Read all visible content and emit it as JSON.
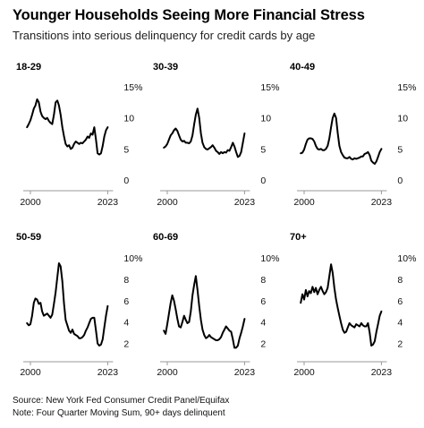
{
  "header": {
    "title": "Younger Households Seeing More Financial Stress",
    "subtitle": "Transitions into serious delinquency for credit cards by age"
  },
  "footer": {
    "source": "Source: New York Fed Consumer Credit Panel/Equifax",
    "note": "Note: Four Quarter Moving Sum, 90+ days delinquent"
  },
  "chart_data": [
    {
      "type": "line",
      "title": "18-29",
      "xlabel": "",
      "ylabel": "",
      "x_ticks": [
        "2000",
        "2023"
      ],
      "xlim": [
        2000,
        2023
      ],
      "y_ticks": [
        0,
        5,
        10,
        15
      ],
      "y_tick_labels": [
        "0",
        "5",
        "10",
        "15%"
      ],
      "ylim": [
        0,
        15
      ],
      "series": [
        {
          "x": [
            1999.0,
            1999.5,
            2000.0,
            2000.5,
            2001.0,
            2001.5,
            2002.0,
            2002.5,
            2003.0,
            2003.5,
            2004.0,
            2004.5,
            2005.0,
            2005.5,
            2006.0,
            2006.5,
            2007.0,
            2007.5,
            2008.0,
            2008.5,
            2009.0,
            2009.5,
            2010.0,
            2010.5,
            2011.0,
            2011.5,
            2012.0,
            2012.5,
            2013.0,
            2013.5,
            2014.0,
            2014.5,
            2015.0,
            2015.5,
            2016.0,
            2016.5,
            2017.0,
            2017.5,
            2018.0,
            2018.5,
            2019.0,
            2019.5,
            2020.0,
            2020.5,
            2021.0,
            2021.5,
            2022.0,
            2022.5,
            2023.0
          ],
          "y": [
            8.5,
            9.0,
            9.6,
            10.5,
            11.5,
            12.0,
            13.0,
            12.5,
            11.0,
            10.3,
            10.0,
            9.8,
            10.0,
            9.5,
            9.2,
            9.0,
            10.5,
            12.5,
            12.8,
            12.0,
            10.5,
            8.5,
            7.0,
            5.8,
            5.4,
            5.6,
            5.0,
            5.2,
            5.8,
            6.2,
            6.0,
            5.8,
            6.0,
            5.9,
            6.2,
            6.5,
            7.0,
            6.8,
            7.5,
            7.3,
            8.5,
            6.5,
            4.3,
            4.1,
            4.3,
            5.5,
            7.0,
            8.0,
            8.5
          ]
        }
      ]
    },
    {
      "type": "line",
      "title": "30-39",
      "xlabel": "",
      "ylabel": "",
      "x_ticks": [
        "2000",
        "2023"
      ],
      "xlim": [
        2000,
        2023
      ],
      "y_ticks": [
        0,
        5,
        10,
        15
      ],
      "y_tick_labels": [
        "0",
        "5",
        "10",
        "15%"
      ],
      "ylim": [
        0,
        15
      ],
      "series": [
        {
          "x": [
            1999.0,
            1999.5,
            2000.0,
            2000.5,
            2001.0,
            2001.5,
            2002.0,
            2002.5,
            2003.0,
            2003.5,
            2004.0,
            2004.5,
            2005.0,
            2005.5,
            2006.0,
            2006.5,
            2007.0,
            2007.5,
            2008.0,
            2008.5,
            2009.0,
            2009.5,
            2010.0,
            2010.5,
            2011.0,
            2011.5,
            2012.0,
            2012.5,
            2013.0,
            2013.5,
            2014.0,
            2014.5,
            2015.0,
            2015.5,
            2016.0,
            2016.5,
            2017.0,
            2017.5,
            2018.0,
            2018.5,
            2019.0,
            2019.5,
            2020.0,
            2020.5,
            2021.0,
            2021.5,
            2022.0,
            2022.5,
            2023.0
          ],
          "y": [
            5.2,
            5.4,
            5.8,
            6.5,
            7.2,
            7.5,
            8.0,
            8.3,
            7.9,
            7.2,
            6.5,
            6.2,
            6.3,
            6.0,
            6.0,
            5.9,
            6.2,
            7.2,
            9.0,
            10.5,
            11.5,
            10.0,
            7.5,
            6.0,
            5.3,
            5.0,
            4.9,
            5.1,
            5.3,
            5.6,
            5.2,
            4.7,
            4.5,
            4.2,
            4.5,
            4.3,
            4.5,
            4.4,
            4.8,
            4.7,
            5.3,
            6.0,
            5.4,
            4.5,
            3.7,
            3.9,
            4.5,
            6.0,
            7.5
          ]
        }
      ]
    },
    {
      "type": "line",
      "title": "40-49",
      "xlabel": "",
      "ylabel": "",
      "x_ticks": [
        "2000",
        "2023"
      ],
      "xlim": [
        2000,
        2023
      ],
      "y_ticks": [
        0,
        5,
        10,
        15
      ],
      "y_tick_labels": [
        "0",
        "5",
        "10",
        "15%"
      ],
      "ylim": [
        0,
        15
      ],
      "series": [
        {
          "x": [
            1999.0,
            1999.5,
            2000.0,
            2000.5,
            2001.0,
            2001.5,
            2002.0,
            2002.5,
            2003.0,
            2003.5,
            2004.0,
            2004.5,
            2005.0,
            2005.5,
            2006.0,
            2006.5,
            2007.0,
            2007.5,
            2008.0,
            2008.5,
            2009.0,
            2009.5,
            2010.0,
            2010.5,
            2011.0,
            2011.5,
            2012.0,
            2012.5,
            2013.0,
            2013.5,
            2014.0,
            2014.5,
            2015.0,
            2015.5,
            2016.0,
            2016.5,
            2017.0,
            2017.5,
            2018.0,
            2018.5,
            2019.0,
            2019.5,
            2020.0,
            2020.5,
            2021.0,
            2021.5,
            2022.0,
            2022.5,
            2023.0
          ],
          "y": [
            4.3,
            4.4,
            4.9,
            5.8,
            6.5,
            6.7,
            6.7,
            6.6,
            6.2,
            5.5,
            5.0,
            4.9,
            5.0,
            4.8,
            4.8,
            5.0,
            5.5,
            6.7,
            8.5,
            10.0,
            10.7,
            10.0,
            7.5,
            5.5,
            4.5,
            4.0,
            3.6,
            3.5,
            3.5,
            3.7,
            3.4,
            3.3,
            3.5,
            3.4,
            3.5,
            3.6,
            3.8,
            3.8,
            4.2,
            4.3,
            4.5,
            4.0,
            3.1,
            2.8,
            2.6,
            3.0,
            3.7,
            4.5,
            5.0
          ]
        }
      ]
    },
    {
      "type": "line",
      "title": "50-59",
      "xlabel": "",
      "ylabel": "",
      "x_ticks": [
        "2000",
        "2023"
      ],
      "xlim": [
        2000,
        2023
      ],
      "y_ticks": [
        2,
        4,
        6,
        8,
        10
      ],
      "y_tick_labels": [
        "2",
        "4",
        "6",
        "8",
        "10%"
      ],
      "ylim": [
        1.3,
        10
      ],
      "series": [
        {
          "x": [
            1999.0,
            1999.5,
            2000.0,
            2000.5,
            2001.0,
            2001.5,
            2002.0,
            2002.5,
            2003.0,
            2003.5,
            2004.0,
            2004.5,
            2005.0,
            2005.5,
            2006.0,
            2006.5,
            2007.0,
            2007.5,
            2008.0,
            2008.5,
            2009.0,
            2009.5,
            2010.0,
            2010.5,
            2011.0,
            2011.5,
            2012.0,
            2012.5,
            2013.0,
            2013.5,
            2014.0,
            2014.5,
            2015.0,
            2015.5,
            2016.0,
            2016.5,
            2017.0,
            2017.5,
            2018.0,
            2018.5,
            2019.0,
            2019.5,
            2020.0,
            2020.5,
            2021.0,
            2021.5,
            2022.0,
            2022.5,
            2023.0
          ],
          "y": [
            3.9,
            3.7,
            3.8,
            4.6,
            5.8,
            6.2,
            6.1,
            5.7,
            5.8,
            5.0,
            4.6,
            4.7,
            4.8,
            4.6,
            4.4,
            4.7,
            5.7,
            6.8,
            8.2,
            9.5,
            9.2,
            7.8,
            5.7,
            4.2,
            3.7,
            3.2,
            3.0,
            3.3,
            2.9,
            2.8,
            2.7,
            2.5,
            2.5,
            2.6,
            2.8,
            3.2,
            3.5,
            3.9,
            4.3,
            4.4,
            4.4,
            3.2,
            2.0,
            1.8,
            1.9,
            2.4,
            3.5,
            4.6,
            5.5
          ]
        }
      ]
    },
    {
      "type": "line",
      "title": "60-69",
      "xlabel": "",
      "ylabel": "",
      "x_ticks": [
        "2000",
        "2023"
      ],
      "xlim": [
        2000,
        2023
      ],
      "y_ticks": [
        2,
        4,
        6,
        8,
        10
      ],
      "y_tick_labels": [
        "2",
        "4",
        "6",
        "8",
        "10%"
      ],
      "ylim": [
        1.3,
        10
      ],
      "series": [
        {
          "x": [
            1999.0,
            1999.5,
            2000.0,
            2000.5,
            2001.0,
            2001.5,
            2002.0,
            2002.5,
            2003.0,
            2003.5,
            2004.0,
            2004.5,
            2005.0,
            2005.5,
            2006.0,
            2006.5,
            2007.0,
            2007.5,
            2008.0,
            2008.5,
            2009.0,
            2009.5,
            2010.0,
            2010.5,
            2011.0,
            2011.5,
            2012.0,
            2012.5,
            2013.0,
            2013.5,
            2014.0,
            2014.5,
            2015.0,
            2015.5,
            2016.0,
            2016.5,
            2017.0,
            2017.5,
            2018.0,
            2018.5,
            2019.0,
            2019.5,
            2020.0,
            2020.5,
            2021.0,
            2021.5,
            2022.0,
            2022.5,
            2023.0
          ],
          "y": [
            3.2,
            2.9,
            3.8,
            4.8,
            5.8,
            6.5,
            6.0,
            5.2,
            4.3,
            3.6,
            3.5,
            4.0,
            4.6,
            4.2,
            3.9,
            4.0,
            5.0,
            6.5,
            7.5,
            8.3,
            7.0,
            5.5,
            4.2,
            3.3,
            2.8,
            2.5,
            2.6,
            2.8,
            2.6,
            2.5,
            2.4,
            2.3,
            2.3,
            2.4,
            2.6,
            3.0,
            3.3,
            3.6,
            3.4,
            3.2,
            3.1,
            2.4,
            1.6,
            1.6,
            1.8,
            2.5,
            3.0,
            3.6,
            4.3
          ]
        }
      ]
    },
    {
      "type": "line",
      "title": "70+",
      "xlabel": "",
      "ylabel": "",
      "x_ticks": [
        "2000",
        "2023"
      ],
      "xlim": [
        2000,
        2023
      ],
      "y_ticks": [
        2,
        4,
        6,
        8,
        10
      ],
      "y_tick_labels": [
        "2",
        "4",
        "6",
        "8",
        "10%"
      ],
      "ylim": [
        1.3,
        10
      ],
      "series": [
        {
          "x": [
            1999.0,
            1999.5,
            2000.0,
            2000.5,
            2001.0,
            2001.5,
            2002.0,
            2002.5,
            2003.0,
            2003.5,
            2004.0,
            2004.5,
            2005.0,
            2005.5,
            2006.0,
            2006.5,
            2007.0,
            2007.5,
            2008.0,
            2008.5,
            2009.0,
            2009.5,
            2010.0,
            2010.5,
            2011.0,
            2011.5,
            2012.0,
            2012.5,
            2013.0,
            2013.5,
            2014.0,
            2014.5,
            2015.0,
            2015.5,
            2016.0,
            2016.5,
            2017.0,
            2017.5,
            2018.0,
            2018.5,
            2019.0,
            2019.5,
            2020.0,
            2020.5,
            2021.0,
            2021.5,
            2022.0,
            2022.5,
            2023.0
          ],
          "y": [
            5.8,
            6.6,
            6.1,
            7.0,
            6.4,
            6.9,
            6.7,
            7.3,
            6.8,
            7.2,
            6.6,
            7.0,
            7.3,
            6.9,
            6.6,
            6.8,
            7.2,
            8.3,
            9.4,
            8.6,
            7.2,
            6.1,
            5.3,
            4.6,
            3.9,
            3.3,
            3.0,
            3.1,
            3.5,
            3.9,
            3.7,
            3.6,
            3.5,
            3.8,
            3.7,
            3.6,
            3.9,
            3.7,
            3.6,
            3.6,
            3.9,
            3.0,
            1.8,
            1.9,
            2.2,
            3.1,
            3.8,
            4.6,
            5.0
          ]
        }
      ]
    }
  ]
}
